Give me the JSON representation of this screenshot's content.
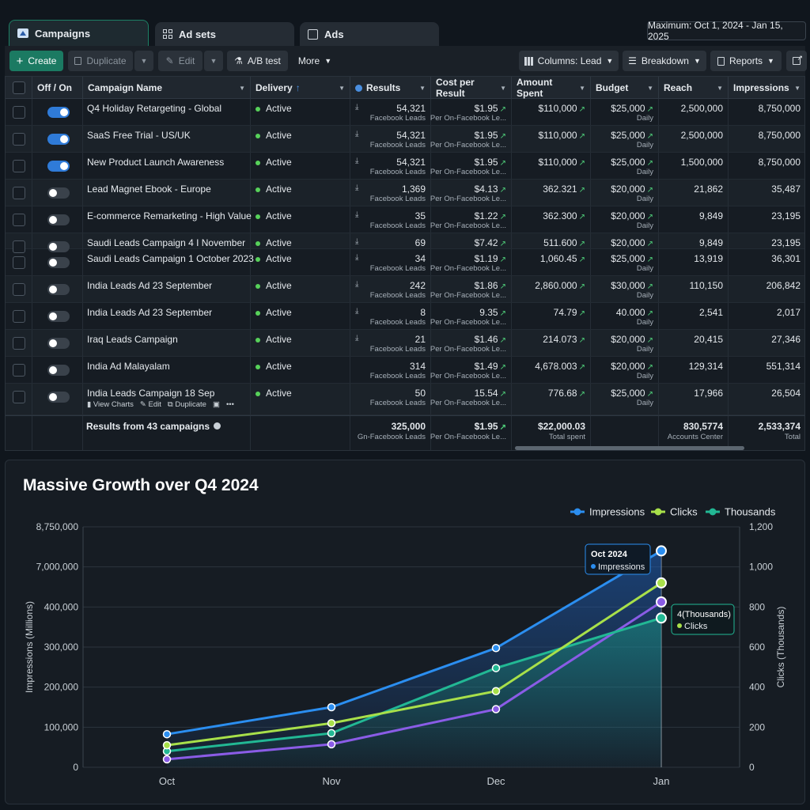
{
  "tabs": [
    {
      "label": "Campaigns",
      "icon": "campaign-icon"
    },
    {
      "label": "Ad sets",
      "icon": "grid-icon"
    },
    {
      "label": "Ads",
      "icon": "ad-icon"
    }
  ],
  "date_range": "Maximum: Oct 1, 2024 - Jan 15, 2025",
  "toolbar": {
    "create": "Create",
    "duplicate": "Duplicate",
    "edit": "Edit",
    "ab_test": "A/B test",
    "more": "More",
    "columns": "Columns: Lead",
    "breakdown": "Breakdown",
    "reports": "Reports"
  },
  "columns": [
    "Off / On",
    "Campaign Name",
    "Delivery",
    "Results",
    "Cost per Result",
    "Amount Spent",
    "Budget",
    "Reach",
    "Impressions"
  ],
  "rows": [
    {
      "on": true,
      "name": "Q4 Holiday Retargeting - Global",
      "delivery": "Active",
      "results": "54,321",
      "results_sub": "Facebook Leads",
      "cpr": "$1.95",
      "cpr_sub": "Per On-Facebook Le...",
      "spent": "$110,000",
      "budget": "$25,000",
      "budget_sub": "Daily",
      "reach": "2,500,000",
      "impressions": "8,750,000",
      "dl": true
    },
    {
      "on": true,
      "name": "SaaS Free Trial - US/UK",
      "delivery": "Active",
      "results": "54,321",
      "results_sub": "Facebook Leads",
      "cpr": "$1.95",
      "cpr_sub": "Per On-Facebook Le...",
      "spent": "$110,000",
      "budget": "$25,000",
      "budget_sub": "Daily",
      "reach": "2,500,000",
      "impressions": "8,750,000",
      "dl": true
    },
    {
      "on": true,
      "name": "New Product Launch Awareness",
      "delivery": "Active",
      "results": "54,321",
      "results_sub": "Facebook Leads",
      "cpr": "$1.95",
      "cpr_sub": "Per On-Facebook Le...",
      "spent": "$110,000",
      "budget": "$25,000",
      "budget_sub": "Daily",
      "reach": "1,500,000",
      "impressions": "8,750,000",
      "dl": true
    },
    {
      "on": false,
      "name": "Lead Magnet Ebook - Europe",
      "delivery": "Active",
      "results": "1,369",
      "results_sub": "Facebook Leads",
      "cpr": "$4.13",
      "cpr_sub": "Per On-Facebook Le...",
      "spent": "362.321",
      "budget": "$20,000",
      "budget_sub": "Daily",
      "reach": "21,862",
      "impressions": "35,487",
      "dl": true
    },
    {
      "on": false,
      "name": "E-commerce Remarketing - High Value",
      "delivery": "Active",
      "results": "35",
      "results_sub": "Facebook Leads",
      "cpr": "$1.22",
      "cpr_sub": "Per On-Facebook Le...",
      "spent": "362.300",
      "budget": "$20,000",
      "budget_sub": "Daily",
      "reach": "9,849",
      "impressions": "23,195",
      "dl": true
    },
    {
      "on": false,
      "name": "Saudi Leads Campaign 4 I November",
      "delivery": "Active",
      "results": "69",
      "results_sub": "",
      "cpr": "$7.42",
      "cpr_sub": "",
      "spent": "511.600",
      "budget": "$20,000",
      "budget_sub": "",
      "reach": "9,849",
      "impressions": "23,195",
      "dl": true
    },
    {
      "on": false,
      "name": "Saudi Leads Campaign 1 October 2023",
      "delivery": "Active",
      "results": "34",
      "results_sub": "Facebook Leads",
      "cpr": "$1.19",
      "cpr_sub": "Per On-Facebook Le...",
      "spent": "1,060.45",
      "budget": "$25,000",
      "budget_sub": "Daily",
      "reach": "13,919",
      "impressions": "36,301",
      "dl": true
    },
    {
      "on": false,
      "name": "India Leads Ad 23 September",
      "delivery": "Active",
      "results": "242",
      "results_sub": "Facebook Leads",
      "cpr": "$1.86",
      "cpr_sub": "Per On-Facebook Le...",
      "spent": "2,860.000",
      "budget": "$30,000",
      "budget_sub": "Daily",
      "reach": "110,150",
      "impressions": "206,842",
      "dl": true
    },
    {
      "on": false,
      "name": "India Leads Ad 23 September",
      "delivery": "Active",
      "results": "8",
      "results_sub": "Facebook Leads",
      "cpr": "9.35",
      "cpr_sub": "Per On-Facebook Le...",
      "spent": "74.79",
      "budget": "40.000",
      "budget_sub": "Daily",
      "reach": "2,541",
      "impressions": "2,017",
      "dl": true
    },
    {
      "on": false,
      "name": "Iraq Leads Campaign",
      "delivery": "Active",
      "results": "21",
      "results_sub": "Facebook Leads",
      "cpr": "$1.46",
      "cpr_sub": "Per On-Facebook Le...",
      "spent": "214.073",
      "budget": "$20,000",
      "budget_sub": "Daily",
      "reach": "20,415",
      "impressions": "27,346",
      "dl": true
    },
    {
      "on": false,
      "name": "India Ad Malayalam",
      "delivery": "Active",
      "results": "314",
      "results_sub": "Facebook Leads",
      "cpr": "$1.49",
      "cpr_sub": "Per On-Facebook Le...",
      "spent": "4,678.003",
      "budget": "$20,000",
      "budget_sub": "Daily",
      "reach": "129,314",
      "impressions": "551,314",
      "dl": false
    },
    {
      "on": false,
      "name": "India Leads Campaign 18 Sep",
      "delivery": "Active",
      "results": "50",
      "results_sub": "Facebook Leads",
      "cpr": "15.54",
      "cpr_sub": "Per On-Facebook Le...",
      "spent": "776.68",
      "budget": "$25,000",
      "budget_sub": "Daily",
      "reach": "17,966",
      "impressions": "26,504",
      "dl": false
    }
  ],
  "row_actions": {
    "view_charts": "View Charts",
    "edit": "Edit",
    "duplicate": "Duplicate"
  },
  "summary": {
    "label": "Results from 43 campaigns",
    "results": "325,000",
    "results_sub": "Gn-Facebook Leads",
    "cpr": "$1.95",
    "cpr_sub": "Per On-Facebook Le...",
    "spent": "$22,000.03",
    "spent_sub": "Total spent",
    "reach": "830,5774",
    "reach_sub": "Accounts Center",
    "impressions": "2,533,374",
    "impressions_sub": "Total"
  },
  "chart_data": {
    "type": "line",
    "title": "Massive Growth over Q4 2024",
    "categories": [
      "Oct",
      "Nov",
      "Dec",
      "Jan"
    ],
    "ylabel_left": "Impressions (Millions)",
    "ylabel_right": "Clicks (Thousands)",
    "left_ticks": [
      "0",
      "100,000",
      "200,000",
      "300,000",
      "400,000",
      "7,000,000",
      "8,750,000"
    ],
    "right_ticks": [
      "0",
      "200",
      "400",
      "600",
      "800",
      "1,000",
      "1,200"
    ],
    "ylim_right": [
      0,
      1200
    ],
    "legend": [
      "Impressions",
      "Clicks",
      "Thousands"
    ],
    "legend_position": "top-right",
    "series": [
      {
        "name": "Impressions",
        "color": "#2b8ef0",
        "values": [
          165,
          300,
          595,
          1080
        ]
      },
      {
        "name": "Clicks",
        "color": "#a8e04a",
        "values": [
          110,
          220,
          380,
          920
        ]
      },
      {
        "name": "Thousands",
        "color": "#22b894",
        "values": [
          80,
          170,
          495,
          745
        ]
      },
      {
        "color": "#8a5ce6",
        "values": [
          40,
          115,
          290,
          825
        ]
      }
    ],
    "tooltip_1": {
      "title": "Oct 2024",
      "item": "Impressions"
    },
    "tooltip_2": {
      "title": "4(Thousands)",
      "item": "Clicks"
    }
  }
}
